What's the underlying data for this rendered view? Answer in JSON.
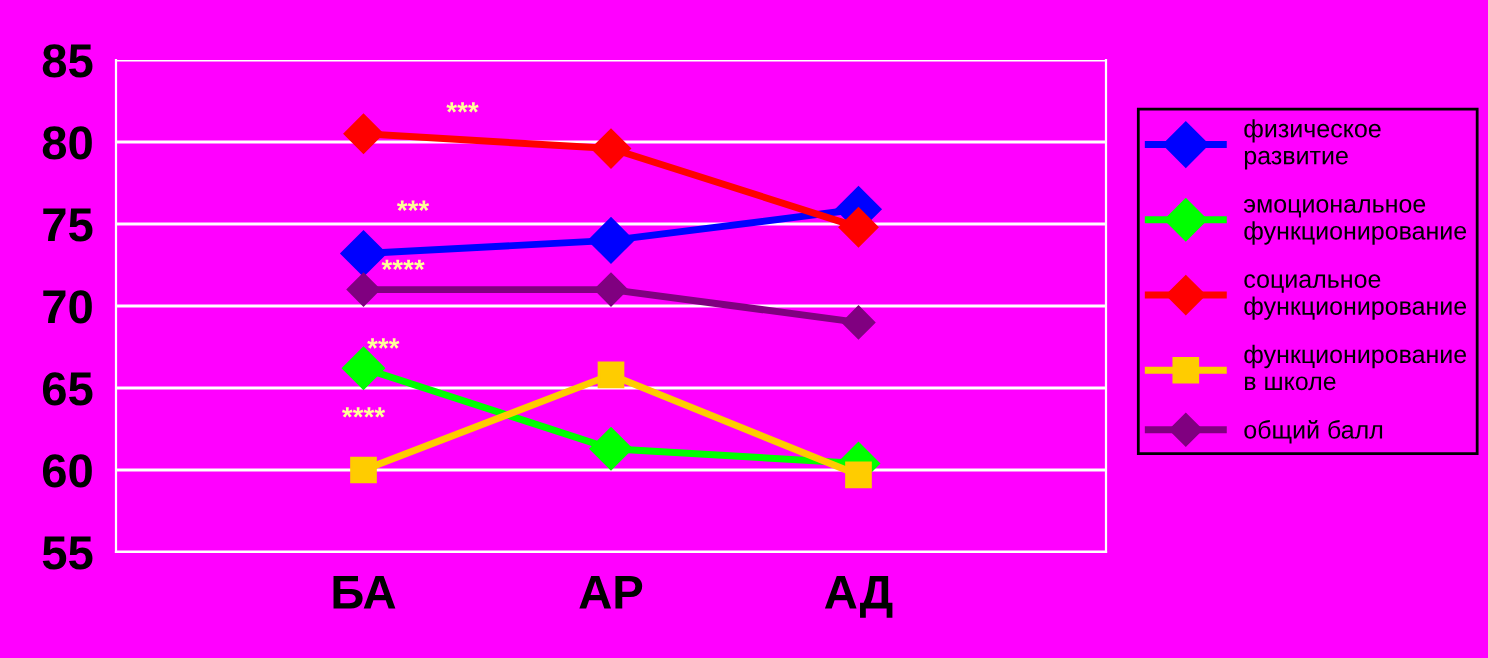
{
  "chart_data": {
    "type": "line",
    "categories": [
      "БА",
      "АР",
      "АД"
    ],
    "ylim": [
      55,
      85
    ],
    "yticks": [
      55,
      60,
      65,
      70,
      75,
      80,
      85
    ],
    "grid": "y",
    "legend": "right",
    "marker": "diamond",
    "line_style": "solid",
    "series": [
      {
        "name": "физическое развитие",
        "color": "#0000ff",
        "values": [
          73.2,
          74.0,
          75.9
        ]
      },
      {
        "name": "эмоциональное функционирование",
        "color": "#00ff00",
        "values": [
          66.2,
          61.3,
          60.4
        ]
      },
      {
        "name": "социальное функционирование",
        "color": "#ff0000",
        "values": [
          80.5,
          79.6,
          74.8
        ]
      },
      {
        "name": "функционирование в школе",
        "color": "#ffcc00",
        "values": [
          60.0,
          65.8,
          59.7
        ],
        "marker": "square"
      },
      {
        "name": "общий балл",
        "color": "#800080",
        "values": [
          71.0,
          71.0,
          69.0
        ]
      }
    ],
    "annotations": [
      "***",
      "***",
      "****",
      "***",
      "****"
    ]
  }
}
